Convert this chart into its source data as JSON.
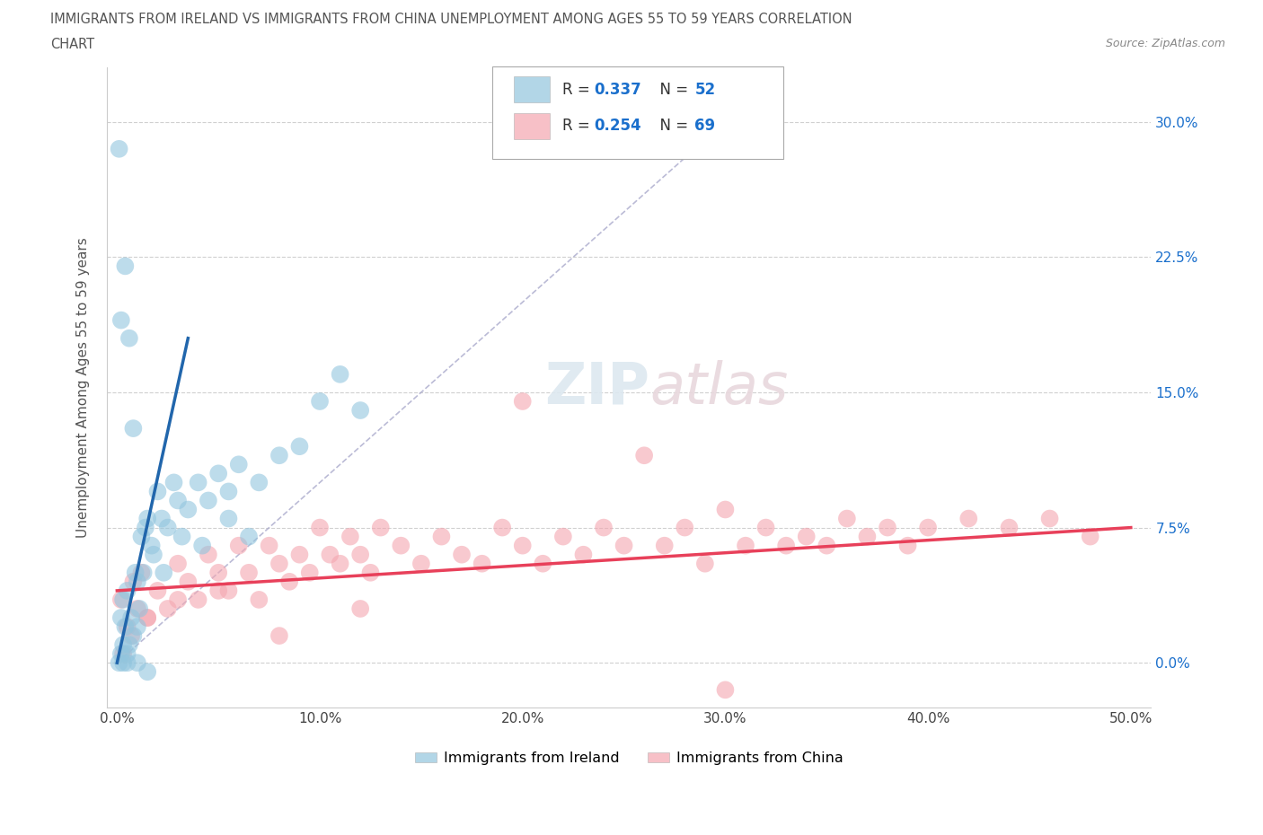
{
  "title_line1": "IMMIGRANTS FROM IRELAND VS IMMIGRANTS FROM CHINA UNEMPLOYMENT AMONG AGES 55 TO 59 YEARS CORRELATION",
  "title_line2": "CHART",
  "source": "Source: ZipAtlas.com",
  "ylabel": "Unemployment Among Ages 55 to 59 years",
  "ytick_values": [
    0.0,
    7.5,
    15.0,
    22.5,
    30.0
  ],
  "xtick_values": [
    0.0,
    10.0,
    20.0,
    30.0,
    40.0,
    50.0
  ],
  "xlim": [
    0,
    50
  ],
  "ylim": [
    -2,
    32
  ],
  "ireland_color": "#92c5de",
  "china_color": "#f4a6b0",
  "ireland_line_color": "#2166ac",
  "china_line_color": "#e8405a",
  "ireland_R": 0.337,
  "ireland_N": 52,
  "china_R": 0.254,
  "china_N": 69,
  "legend_label_ireland": "Immigrants from Ireland",
  "legend_label_china": "Immigrants from China",
  "watermark": "ZIPatlas",
  "tick_color": "#1a6fcc",
  "grid_color": "#d0d0d0",
  "title_color": "#555555",
  "ireland_x": [
    0.1,
    0.2,
    0.2,
    0.3,
    0.3,
    0.4,
    0.5,
    0.5,
    0.6,
    0.7,
    0.8,
    0.9,
    1.0,
    1.0,
    1.1,
    1.2,
    1.3,
    1.5,
    1.7,
    2.0,
    2.2,
    2.5,
    2.8,
    3.0,
    3.5,
    4.0,
    4.5,
    5.0,
    5.5,
    6.0,
    7.0,
    8.0,
    9.0,
    10.0,
    11.0,
    12.0,
    0.2,
    0.4,
    0.6,
    0.8,
    1.4,
    1.8,
    2.3,
    3.2,
    4.2,
    5.5,
    6.5,
    0.1,
    0.3,
    0.5,
    1.0,
    1.5
  ],
  "ireland_y": [
    0.0,
    0.5,
    2.5,
    1.0,
    3.5,
    2.0,
    0.0,
    4.0,
    1.0,
    2.5,
    1.5,
    5.0,
    0.0,
    4.5,
    3.0,
    7.0,
    5.0,
    8.0,
    6.5,
    9.5,
    8.0,
    7.5,
    10.0,
    9.0,
    8.5,
    10.0,
    9.0,
    10.5,
    9.5,
    11.0,
    10.0,
    11.5,
    12.0,
    14.5,
    16.0,
    14.0,
    19.0,
    22.0,
    18.0,
    13.0,
    7.5,
    6.0,
    5.0,
    7.0,
    6.5,
    8.0,
    7.0,
    28.5,
    0.0,
    0.5,
    2.0,
    -0.5
  ],
  "china_x": [
    0.2,
    0.5,
    0.8,
    1.0,
    1.2,
    1.5,
    2.0,
    2.5,
    3.0,
    3.5,
    4.0,
    4.5,
    5.0,
    5.5,
    6.0,
    6.5,
    7.0,
    7.5,
    8.0,
    8.5,
    9.0,
    9.5,
    10.0,
    10.5,
    11.0,
    11.5,
    12.0,
    12.5,
    13.0,
    14.0,
    15.0,
    16.0,
    17.0,
    18.0,
    19.0,
    20.0,
    21.0,
    22.0,
    23.0,
    24.0,
    25.0,
    26.0,
    27.0,
    28.0,
    29.0,
    30.0,
    31.0,
    32.0,
    33.0,
    34.0,
    35.0,
    36.0,
    37.0,
    38.0,
    39.0,
    40.0,
    42.0,
    44.0,
    46.0,
    48.0,
    0.3,
    0.7,
    1.5,
    3.0,
    5.0,
    8.0,
    12.0,
    20.0,
    30.0
  ],
  "china_y": [
    3.5,
    2.0,
    4.5,
    3.0,
    5.0,
    2.5,
    4.0,
    3.0,
    5.5,
    4.5,
    3.5,
    6.0,
    5.0,
    4.0,
    6.5,
    5.0,
    3.5,
    6.5,
    5.5,
    4.5,
    6.0,
    5.0,
    7.5,
    6.0,
    5.5,
    7.0,
    6.0,
    5.0,
    7.5,
    6.5,
    5.5,
    7.0,
    6.0,
    5.5,
    7.5,
    6.5,
    5.5,
    7.0,
    6.0,
    7.5,
    6.5,
    11.5,
    6.5,
    7.5,
    5.5,
    8.5,
    6.5,
    7.5,
    6.5,
    7.0,
    6.5,
    8.0,
    7.0,
    7.5,
    6.5,
    7.5,
    8.0,
    7.5,
    8.0,
    7.0,
    0.5,
    1.5,
    2.5,
    3.5,
    4.0,
    1.5,
    3.0,
    14.5,
    -1.5
  ]
}
